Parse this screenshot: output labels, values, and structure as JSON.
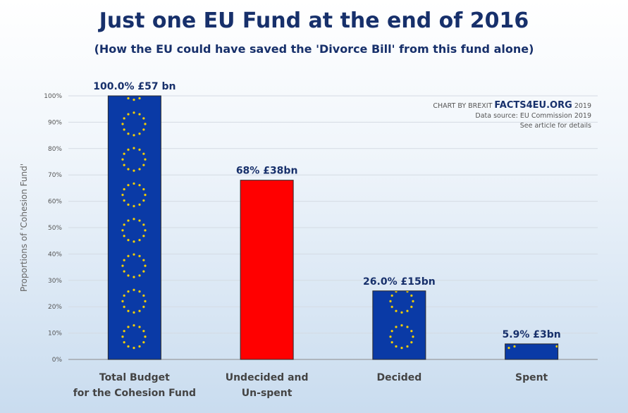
{
  "title": "Just one EU Fund at the end of 2016",
  "subtitle": "(How the EU could have saved the 'Divorce Bill' from this fund alone)",
  "credit": {
    "prefix": "CHART BY BREXIT",
    "brand": "FACTS4EU.ORG",
    "year": "2019",
    "source": "Data source: EU Commission 2019",
    "note": "See article for details"
  },
  "colors": {
    "eu_blue": "#0a3aa6",
    "red": "#ff0000",
    "star": "#f7d000",
    "label": "#17306b"
  },
  "chart_data": {
    "type": "bar",
    "ylabel": "Proportions of 'Cohesion Fund'",
    "ylim": [
      0,
      100
    ],
    "yticks": [
      "0%",
      "10%",
      "20%",
      "30%",
      "40%",
      "50%",
      "60%",
      "70%",
      "80%",
      "90%",
      "100%"
    ],
    "grid": true,
    "categories": [
      [
        "Total Budget",
        "for the Cohesion Fund"
      ],
      [
        "Undecided and",
        "Un-spent"
      ],
      [
        "Decided"
      ],
      [
        "Spent"
      ]
    ],
    "values": [
      100.0,
      68.0,
      26.0,
      5.9
    ],
    "data_labels": [
      "100.0%  £57 bn",
      "68% £38bn",
      "26.0% £15bn",
      "5.9% £3bn"
    ],
    "bar_styles": [
      "eu-flag",
      "red",
      "eu-flag",
      "eu-flag"
    ]
  }
}
